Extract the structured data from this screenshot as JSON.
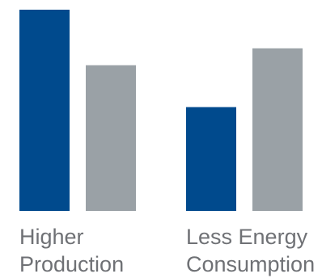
{
  "chart_data": {
    "type": "bar",
    "categories": [
      [
        "Higher",
        "Production"
      ],
      [
        "Less Energy",
        "Consumption"
      ]
    ],
    "series": [
      {
        "values": [
          100,
          51.6
        ]
      },
      {
        "values": [
          72.4,
          80.8
        ]
      }
    ],
    "ylim": [
      0,
      100
    ],
    "grid": false,
    "legend": "none",
    "colors": [
      "#004a8d",
      "#9aa1a6"
    ],
    "label_color": "#6f7175"
  }
}
